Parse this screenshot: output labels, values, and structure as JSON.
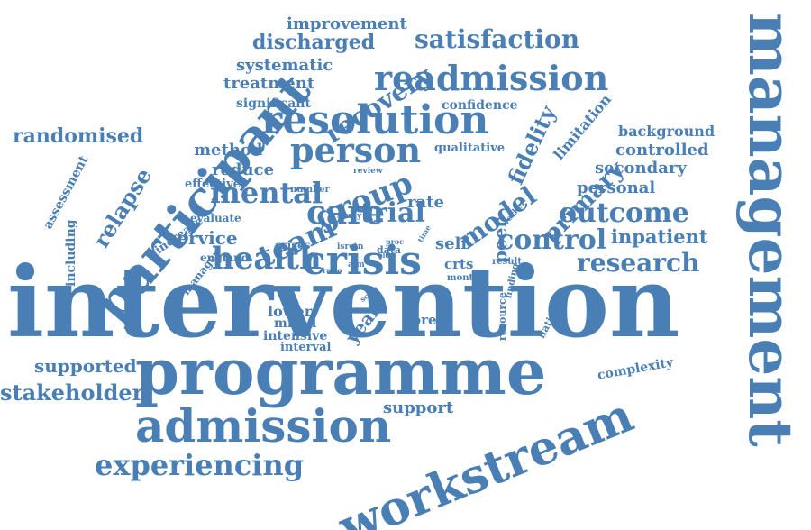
{
  "cloud": {
    "color": "#4a7fb5",
    "words": [
      {
        "name": "word-intervention",
        "text": "intervention",
        "weight": 100,
        "orientation": "horizontal"
      },
      {
        "name": "word-management",
        "text": "management",
        "weight": 68,
        "orientation": "vertical"
      },
      {
        "name": "word-programme",
        "text": "programme",
        "weight": 60,
        "orientation": "horizontal"
      },
      {
        "name": "word-workstream",
        "text": "workstream",
        "weight": 50,
        "orientation": "diagonal"
      },
      {
        "name": "word-participant",
        "text": "participant",
        "weight": 40,
        "orientation": "diagonal"
      },
      {
        "name": "word-admission",
        "text": "admission",
        "weight": 38,
        "orientation": "horizontal"
      },
      {
        "name": "word-resolution",
        "text": "resolution",
        "weight": 34,
        "orientation": "horizontal"
      },
      {
        "name": "word-health",
        "text": "health",
        "weight": 30,
        "orientation": "horizontal"
      },
      {
        "name": "word-crisis",
        "text": "crisis",
        "weight": 30,
        "orientation": "horizontal"
      },
      {
        "name": "word-person",
        "text": "person",
        "weight": 30,
        "orientation": "horizontal"
      },
      {
        "name": "word-readmission",
        "text": "readmission",
        "weight": 28,
        "orientation": "horizontal"
      },
      {
        "name": "word-experiencing",
        "text": "experiencing",
        "weight": 24,
        "orientation": "horizontal"
      },
      {
        "name": "word-team",
        "text": "team",
        "weight": 26,
        "orientation": "diagonal"
      },
      {
        "name": "word-group",
        "text": "group",
        "weight": 28,
        "orientation": "diagonal"
      },
      {
        "name": "word-care",
        "text": "care",
        "weight": 26,
        "orientation": "horizontal"
      },
      {
        "name": "word-trial",
        "text": "trial",
        "weight": 24,
        "orientation": "horizontal"
      },
      {
        "name": "word-mental",
        "text": "mental",
        "weight": 24,
        "orientation": "horizontal"
      },
      {
        "name": "word-outcome",
        "text": "outcome",
        "weight": 24,
        "orientation": "horizontal"
      },
      {
        "name": "word-control",
        "text": "control",
        "weight": 24,
        "orientation": "horizontal"
      },
      {
        "name": "word-research",
        "text": "research",
        "weight": 20,
        "orientation": "horizontal"
      },
      {
        "name": "word-satisfaction",
        "text": "satisfaction",
        "weight": 20,
        "orientation": "horizontal"
      },
      {
        "name": "word-recovery",
        "text": "recovery",
        "weight": 20,
        "orientation": "diagonal"
      },
      {
        "name": "word-model",
        "text": "model",
        "weight": 20,
        "orientation": "diagonal"
      },
      {
        "name": "word-fidelity",
        "text": "fidelity",
        "weight": 18,
        "orientation": "diagonal"
      },
      {
        "name": "word-primary",
        "text": "primary",
        "weight": 20,
        "orientation": "diagonal"
      },
      {
        "name": "word-relapse",
        "text": "relapse",
        "weight": 18,
        "orientation": "diagonal"
      },
      {
        "name": "word-stakeholder",
        "text": "stakeholder",
        "weight": 18,
        "orientation": "horizontal"
      },
      {
        "name": "word-randomised",
        "text": "randomised",
        "weight": 18,
        "orientation": "horizontal"
      },
      {
        "name": "word-discharged",
        "text": "discharged",
        "weight": 16,
        "orientation": "horizontal"
      },
      {
        "name": "word-supported",
        "text": "supported",
        "weight": 16,
        "orientation": "horizontal"
      },
      {
        "name": "word-service",
        "text": "service",
        "weight": 16,
        "orientation": "horizontal"
      },
      {
        "name": "word-inpatient",
        "text": "inpatient",
        "weight": 16,
        "orientation": "horizontal"
      },
      {
        "name": "word-peer",
        "text": "peer",
        "weight": 16,
        "orientation": "vertical"
      },
      {
        "name": "word-self",
        "text": "self",
        "weight": 16,
        "orientation": "horizontal"
      },
      {
        "name": "word-year",
        "text": "year",
        "weight": 16,
        "orientation": "diagonal"
      },
      {
        "name": "word-personal",
        "text": "personal",
        "weight": 14,
        "orientation": "horizontal"
      },
      {
        "name": "word-secondary",
        "text": "secondary",
        "weight": 14,
        "orientation": "horizontal"
      },
      {
        "name": "word-controlled",
        "text": "controlled",
        "weight": 14,
        "orientation": "horizontal"
      },
      {
        "name": "word-systematic",
        "text": "systematic",
        "weight": 14,
        "orientation": "horizontal"
      },
      {
        "name": "word-treatment",
        "text": "treatment",
        "weight": 14,
        "orientation": "horizontal"
      },
      {
        "name": "word-improvement",
        "text": "improvement",
        "weight": 14,
        "orientation": "horizontal"
      },
      {
        "name": "word-support",
        "text": "support",
        "weight": 14,
        "orientation": "horizontal"
      },
      {
        "name": "word-reduce",
        "text": "reduce",
        "weight": 14,
        "orientation": "horizontal"
      },
      {
        "name": "word-method",
        "text": "method",
        "weight": 14,
        "orientation": "horizontal"
      },
      {
        "name": "word-rate",
        "text": "rate",
        "weight": 14,
        "orientation": "horizontal"
      },
      {
        "name": "word-limitation",
        "text": "limitation",
        "weight": 12,
        "orientation": "diagonal"
      },
      {
        "name": "word-background",
        "text": "background",
        "weight": 12,
        "orientation": "horizontal"
      },
      {
        "name": "word-complexity",
        "text": "complexity",
        "weight": 11,
        "orientation": "diagonal"
      },
      {
        "name": "word-lower",
        "text": "lower",
        "weight": 12,
        "orientation": "horizontal"
      },
      {
        "name": "word-mixed",
        "text": "mixed",
        "weight": 11,
        "orientation": "horizontal"
      },
      {
        "name": "word-intensive",
        "text": "intensive",
        "weight": 11,
        "orientation": "horizontal"
      },
      {
        "name": "word-interval",
        "text": "interval",
        "weight": 10,
        "orientation": "horizontal"
      },
      {
        "name": "word-core",
        "text": "core",
        "weight": 12,
        "orientation": "horizontal"
      },
      {
        "name": "word-crts",
        "text": "crts",
        "weight": 12,
        "orientation": "horizontal"
      },
      {
        "name": "word-significant",
        "text": "significant",
        "weight": 11,
        "orientation": "horizontal"
      },
      {
        "name": "word-confidence",
        "text": "confidence",
        "weight": 11,
        "orientation": "horizontal"
      },
      {
        "name": "word-qualitative",
        "text": "qualitative",
        "weight": 11,
        "orientation": "horizontal"
      },
      {
        "name": "word-assessment",
        "text": "assessment",
        "weight": 11,
        "orientation": "diagonal"
      },
      {
        "name": "word-including",
        "text": "including",
        "weight": 11,
        "orientation": "vertical"
      },
      {
        "name": "word-effective",
        "text": "effective",
        "weight": 10,
        "orientation": "horizontal"
      },
      {
        "name": "word-increase",
        "text": "increase",
        "weight": 10,
        "orientation": "diagonal"
      },
      {
        "name": "word-evaluate",
        "text": "evaluate",
        "weight": 10,
        "orientation": "horizontal"
      },
      {
        "name": "word-manager",
        "text": "manager",
        "weight": 10,
        "orientation": "diagonal"
      },
      {
        "name": "word-england",
        "text": "england",
        "weight": 10,
        "orientation": "horizontal"
      },
      {
        "name": "word-crises",
        "text": "crises",
        "weight": 10,
        "orientation": "horizontal"
      },
      {
        "name": "word-resource",
        "text": "resource",
        "weight": 9,
        "orientation": "vertical"
      },
      {
        "name": "word-national",
        "text": "national",
        "weight": 9,
        "orientation": "diagonal"
      },
      {
        "name": "word-month",
        "text": "month",
        "weight": 8,
        "orientation": "horizontal"
      },
      {
        "name": "word-result",
        "text": "result",
        "weight": 8,
        "orientation": "horizontal"
      },
      {
        "name": "word-finding",
        "text": "finding",
        "weight": 8,
        "orientation": "vertical"
      },
      {
        "name": "word-number",
        "text": "number",
        "weight": 8,
        "orientation": "horizontal"
      },
      {
        "name": "word-review",
        "text": "review",
        "weight": 7,
        "orientation": "horizontal"
      },
      {
        "name": "word-data",
        "text": "data",
        "weight": 8,
        "orientation": "horizontal"
      },
      {
        "name": "word-study",
        "text": "study",
        "weight": 7,
        "orientation": "horizontal"
      },
      {
        "name": "word-worker",
        "text": "worker",
        "weight": 7,
        "orientation": "diagonal"
      },
      {
        "name": "word-isrctn",
        "text": "isrctn",
        "weight": 7,
        "orientation": "horizontal"
      },
      {
        "name": "word-aim",
        "text": "aim",
        "weight": 7,
        "orientation": "horizontal"
      },
      {
        "name": "word-ratio",
        "text": "ratio",
        "weight": 6,
        "orientation": "horizontal"
      },
      {
        "name": "word-scale",
        "text": "scale",
        "weight": 6,
        "orientation": "diagonal"
      },
      {
        "name": "word-proc",
        "text": "proc",
        "weight": 6,
        "orientation": "horizontal"
      },
      {
        "name": "word-time",
        "text": "time",
        "weight": 5,
        "orientation": "diagonal"
      },
      {
        "name": "word-old",
        "text": "old",
        "weight": 5,
        "orientation": "horizontal"
      }
    ]
  }
}
